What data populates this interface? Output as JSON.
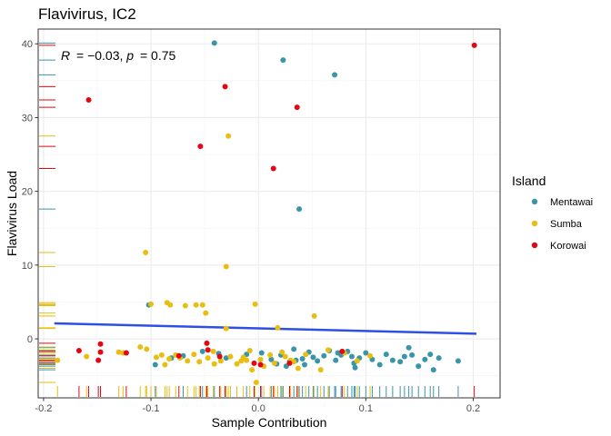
{
  "chart_data": {
    "type": "scatter",
    "title": "Flavivirus, IC2",
    "xlabel": "Sample Contribution",
    "ylabel": "Flavivirus Load",
    "xlim": [
      -0.205,
      0.225
    ],
    "ylim": [
      -8,
      42
    ],
    "x_ticks": [
      -0.2,
      -0.1,
      0.0,
      0.1,
      0.2
    ],
    "x_tick_labels": [
      "-0.2",
      "-0.1",
      "0.0",
      "0.1",
      "0.2"
    ],
    "y_ticks": [
      0,
      10,
      20,
      30,
      40
    ],
    "y_tick_labels": [
      "0",
      "10",
      "20",
      "30",
      "40"
    ],
    "grid": true,
    "legend": {
      "title": "Island",
      "position": "right"
    },
    "annotation": {
      "R_label": "R",
      "R_value": "= −0.03, ",
      "p_label": "p",
      "p_value": "= 0.75"
    },
    "trend_line": {
      "color": "#2E4FE6",
      "x": [
        -0.19,
        0.203
      ],
      "y": [
        2.1,
        0.7
      ]
    },
    "series": [
      {
        "name": "Mentawai",
        "color": "#3A95A9",
        "points": [
          [
            -0.041,
            40.1
          ],
          [
            0.023,
            37.8
          ],
          [
            0.071,
            35.8
          ],
          [
            0.038,
            17.6
          ],
          [
            -0.102,
            4.6
          ],
          [
            -0.096,
            -3.5
          ],
          [
            -0.07,
            -2.3
          ],
          [
            -0.052,
            -1.7
          ],
          [
            -0.03,
            -2.6
          ],
          [
            -0.011,
            -2.1
          ],
          [
            0.003,
            -1.9
          ],
          [
            0.012,
            -2.8
          ],
          [
            0.021,
            -2.2
          ],
          [
            0.029,
            -3.1
          ],
          [
            0.033,
            -1.4
          ],
          [
            0.041,
            -2.7
          ],
          [
            0.047,
            -1.8
          ],
          [
            0.055,
            -3.0
          ],
          [
            0.061,
            -2.3
          ],
          [
            0.066,
            -1.6
          ],
          [
            0.072,
            -2.9
          ],
          [
            0.077,
            -2.2
          ],
          [
            0.083,
            -1.7
          ],
          [
            0.089,
            -3.3
          ],
          [
            0.094,
            -2.6
          ],
          [
            0.1,
            -1.9
          ],
          [
            0.106,
            -2.8
          ],
          [
            0.113,
            -3.5
          ],
          [
            0.119,
            -2.1
          ],
          [
            0.125,
            -2.9
          ],
          [
            0.136,
            -2.4
          ],
          [
            0.14,
            -1.2
          ],
          [
            0.143,
            -2.2
          ],
          [
            0.149,
            -3.7
          ],
          [
            0.16,
            -2.1
          ],
          [
            0.163,
            -4.2
          ],
          [
            0.168,
            -2.6
          ],
          [
            0.186,
            -3.0
          ],
          [
            -0.081,
            -2.6
          ],
          [
            0.051,
            -2.5
          ],
          [
            0.043,
            -3.5
          ],
          [
            0.035,
            -2.9
          ],
          [
            0.017,
            -3.4
          ],
          [
            0.074,
            -1.9
          ],
          [
            0.132,
            -3.1
          ],
          [
            0.155,
            -2.8
          ],
          [
            0.087,
            -2.4
          ],
          [
            0.09,
            -3.9
          ],
          [
            -0.037,
            -2.0
          ],
          [
            0.026,
            -3.7
          ]
        ]
      },
      {
        "name": "Sumba",
        "color": "#E8BE13",
        "points": [
          [
            -0.028,
            27.5
          ],
          [
            -0.105,
            11.7
          ],
          [
            -0.03,
            9.8
          ],
          [
            -0.1,
            4.7
          ],
          [
            -0.082,
            4.6
          ],
          [
            -0.085,
            4.9
          ],
          [
            -0.068,
            4.5
          ],
          [
            -0.058,
            4.6
          ],
          [
            -0.052,
            4.6
          ],
          [
            -0.049,
            3.5
          ],
          [
            -0.003,
            4.7
          ],
          [
            0.052,
            3.1
          ],
          [
            -0.03,
            1.4
          ],
          [
            0.018,
            1.5
          ],
          [
            -0.187,
            -2.9
          ],
          [
            -0.16,
            -2.4
          ],
          [
            -0.13,
            -1.8
          ],
          [
            -0.126,
            -1.9
          ],
          [
            -0.11,
            -1.1
          ],
          [
            -0.104,
            -1.4
          ],
          [
            -0.095,
            -2.5
          ],
          [
            -0.087,
            -3.5
          ],
          [
            -0.083,
            -2.7
          ],
          [
            -0.077,
            -2.2
          ],
          [
            -0.066,
            -3.0
          ],
          [
            -0.06,
            -2.1
          ],
          [
            -0.055,
            -3.1
          ],
          [
            -0.047,
            -2.6
          ],
          [
            -0.042,
            -1.7
          ],
          [
            -0.035,
            -3.0
          ],
          [
            -0.026,
            -2.4
          ],
          [
            -0.02,
            -3.4
          ],
          [
            -0.014,
            -2.5
          ],
          [
            -0.008,
            -1.6
          ],
          [
            -0.002,
            -5.9
          ],
          [
            0.005,
            -3.7
          ],
          [
            0.011,
            -2.2
          ],
          [
            0.015,
            -3.3
          ],
          [
            0.022,
            -1.8
          ],
          [
            0.03,
            -2.9
          ],
          [
            0.037,
            -4.0
          ],
          [
            0.044,
            -2.1
          ],
          [
            0.058,
            -4.2
          ],
          [
            0.065,
            -1.5
          ],
          [
            0.08,
            -1.9
          ],
          [
            0.092,
            -3.0
          ],
          [
            0.104,
            -2.3
          ],
          [
            -0.016,
            -3.0
          ],
          [
            0.002,
            -2.8
          ],
          [
            -0.09,
            -2.2
          ],
          [
            -0.073,
            -2.6
          ],
          [
            -0.041,
            -3.4
          ],
          [
            -0.006,
            -4.2
          ],
          [
            0.025,
            -2.4
          ],
          [
            0.033,
            -3.1
          ],
          [
            -0.011,
            -2.9
          ]
        ]
      },
      {
        "name": "Korowai",
        "color": "#E40613",
        "points": [
          [
            -0.158,
            32.4
          ],
          [
            -0.031,
            34.2
          ],
          [
            0.036,
            31.4
          ],
          [
            -0.054,
            26.1
          ],
          [
            0.014,
            23.1
          ],
          [
            0.201,
            39.8
          ],
          [
            -0.147,
            -0.7
          ],
          [
            -0.167,
            -1.6
          ],
          [
            -0.147,
            -1.8
          ],
          [
            -0.149,
            -2.9
          ],
          [
            -0.123,
            -1.9
          ],
          [
            -0.074,
            -2.3
          ],
          [
            -0.048,
            -0.6
          ],
          [
            -0.047,
            -1.5
          ],
          [
            -0.004,
            -3.3
          ],
          [
            0.002,
            -3.5
          ],
          [
            0.029,
            -3.3
          ],
          [
            0.078,
            -1.7
          ],
          [
            -0.036,
            -2.4
          ]
        ]
      }
    ],
    "rug_x": {
      "Mentawai": [
        -0.096,
        -0.07,
        -0.052,
        -0.03,
        -0.011,
        0.003,
        0.012,
        0.021,
        0.023,
        0.029,
        0.033,
        0.038,
        0.041,
        0.047,
        0.055,
        0.061,
        0.066,
        0.071,
        0.072,
        0.077,
        0.083,
        0.089,
        0.094,
        0.1,
        0.106,
        0.113,
        0.119,
        0.125,
        0.132,
        0.136,
        0.14,
        0.143,
        0.149,
        0.155,
        0.16,
        0.163,
        0.168,
        0.186,
        0.087,
        0.09,
        0.051,
        -0.041
      ],
      "Sumba": [
        -0.187,
        -0.16,
        -0.13,
        -0.126,
        -0.11,
        -0.105,
        -0.104,
        -0.1,
        -0.095,
        -0.087,
        -0.085,
        -0.083,
        -0.077,
        -0.066,
        -0.06,
        -0.058,
        -0.055,
        -0.049,
        -0.047,
        -0.042,
        -0.035,
        -0.03,
        -0.028,
        -0.026,
        -0.02,
        -0.014,
        -0.008,
        -0.003,
        0.005,
        0.011,
        0.015,
        0.018,
        0.022,
        0.03,
        0.037,
        0.044,
        0.052,
        0.058,
        0.065,
        0.08,
        0.092,
        0.104
      ],
      "Korowai": [
        -0.167,
        -0.158,
        -0.149,
        -0.147,
        -0.123,
        -0.074,
        -0.054,
        -0.048,
        -0.036,
        -0.031,
        -0.004,
        0.002,
        0.014,
        0.029,
        0.036,
        0.078,
        0.201
      ]
    },
    "rug_y": {
      "Mentawai": [
        40.1,
        37.8,
        35.8,
        17.6,
        4.6,
        -1.2,
        -1.6,
        -1.9,
        -2.2,
        -2.6,
        -2.9,
        -3.1,
        -3.5,
        -3.7,
        -4.2
      ],
      "Sumba": [
        27.5,
        11.7,
        9.8,
        4.9,
        4.7,
        4.6,
        4.5,
        3.5,
        3.1,
        1.5,
        1.4,
        -1.1,
        -1.5,
        -1.9,
        -2.3,
        -2.7,
        -3.0,
        -3.4,
        -4.0,
        -5.9
      ],
      "Korowai": [
        39.8,
        34.2,
        32.4,
        31.4,
        26.1,
        23.1,
        -0.6,
        -1.7,
        -2.3,
        -2.9,
        -3.3
      ]
    }
  }
}
